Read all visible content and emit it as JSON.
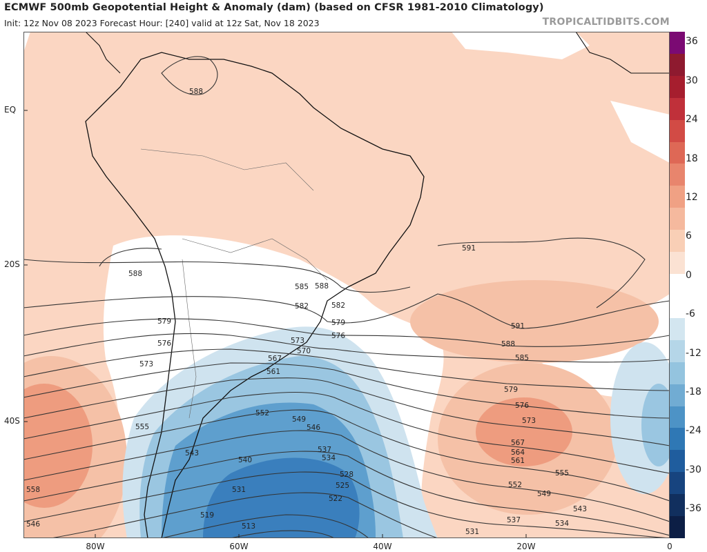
{
  "header": {
    "title": "ECMWF 500mb Geopotential Height & Anomaly (dam) (based on CFSR 1981-2010 Climatology)",
    "subtitle": "Init: 12z Nov 08 2023   Forecast Hour: [240]   valid at 12z Sat, Nov 18 2023",
    "credit": "TROPICALTIDBITS.COM"
  },
  "axes": {
    "lat_labels": [
      "EQ",
      "20S",
      "40S"
    ],
    "lon_labels": [
      "80W",
      "60W",
      "40W",
      "20W",
      "0"
    ]
  },
  "colorbar": {
    "labels": [
      "36",
      "30",
      "24",
      "18",
      "12",
      "6",
      "0",
      "-6",
      "-12",
      "-18",
      "-24",
      "-30",
      "-36"
    ],
    "colors": [
      "#7b0a73",
      "#8e1a2f",
      "#a61e2e",
      "#c0303a",
      "#d24b45",
      "#de6856",
      "#e8856d",
      "#f0a184",
      "#f5b99e",
      "#f9cfb6",
      "#fbe2d3",
      "#ffffff",
      "#ffffff",
      "#d3e6f0",
      "#b5d6e8",
      "#94c4df",
      "#71acd3",
      "#4d93c6",
      "#2f78b5",
      "#1f5d9e",
      "#17447f",
      "#112f5e",
      "#0c1e45"
    ]
  },
  "contour_labels": [
    "588",
    "591",
    "588",
    "585",
    "582",
    "579",
    "576",
    "573",
    "570",
    "567",
    "561",
    "591",
    "588",
    "585",
    "582",
    "579",
    "576",
    "552",
    "549",
    "546",
    "543",
    "540",
    "537",
    "534",
    "531",
    "528",
    "525",
    "522",
    "519",
    "513",
    "555",
    "558",
    "546",
    "579",
    "576",
    "573",
    "567",
    "564",
    "561",
    "555",
    "552",
    "549",
    "543",
    "537",
    "534",
    "531"
  ],
  "colors": {
    "warm": "#fbd6c2",
    "warm2": "#f5b99e",
    "warm3": "#ee9c7f",
    "cool1": "#cfe3ef",
    "cool2": "#9ac6e1",
    "cool3": "#5e9fce",
    "cool4": "#3a7fbd",
    "land_line": "#111111"
  }
}
